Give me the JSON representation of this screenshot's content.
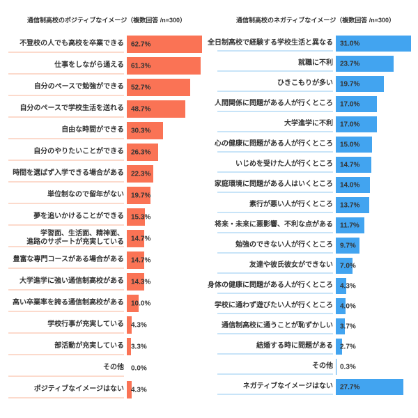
{
  "chart_data": [
    {
      "type": "bar",
      "orientation": "horizontal",
      "title": "通信制高校のポジティブなイメージ（複数回答 /n=300）",
      "sample_note": "複数回答 /n=300",
      "bar_color": "#FA7355",
      "label_underline_color": "#FCDACC",
      "value_text_color": "#333333",
      "label_text_color": "#333333",
      "value_label_format": "{value}%",
      "xlim": [
        0,
        62.7
      ],
      "grid": false,
      "legend": "none",
      "categories": [
        "不登校の人でも高校を卒業できる",
        "仕事をしながら通える",
        "自分のペースで勉強ができる",
        "自分のペースで学校生活を送れる",
        "自由な時間ができる",
        "自分のやりたいことができる",
        "時間を選ばず入学できる場合がある",
        "単位制なので留年がない",
        "夢を追いかけることができる",
        "学習面、生活面、精神面、\n進路のサポートが充実している",
        "豊富な専門コースがある場合がある",
        "大学進学に強い通信制高校がある",
        "高い卒業率を誇る通信制高校がある",
        "学校行事が充実している",
        "部活動が充実している",
        "その他",
        "ポジティブなイメージはない"
      ],
      "values": [
        62.7,
        61.3,
        52.7,
        48.7,
        30.3,
        26.3,
        22.3,
        19.7,
        15.3,
        14.7,
        14.7,
        14.3,
        10.0,
        4.3,
        3.3,
        0.0,
        4.3
      ]
    },
    {
      "type": "bar",
      "orientation": "horizontal",
      "title": "通信制高校のネガティブなイメージ（複数回答 /n=300）",
      "sample_note": "複数回答 /n=300",
      "bar_color": "#42A4F0",
      "label_underline_color": "#C8E4F8",
      "value_text_color": "#333333",
      "label_text_color": "#333333",
      "value_label_format": "{value}%",
      "xlim": [
        0,
        31.0
      ],
      "grid": false,
      "legend": "none",
      "categories": [
        "全日制高校で経験する学校生活と異なる",
        "就職に不利",
        "ひきこもりが多い",
        "人間関係に問題がある人が行くところ",
        "大学進学に不利",
        "心の健康に問題がある人が行くところ",
        "いじめを受けた人が行くところ",
        "家庭環境に問題がある人はいくところ",
        "素行が悪い人が行くところ",
        "将来・未来に悪影響、不利な点がある",
        "勉強のできない人が行くところ",
        "友達や彼氏彼女ができない",
        "身体の健康に問題がある人が行くところ",
        "学校に通わず遊びたい人が行くところ",
        "通信制高校に通うことが恥ずかしい",
        "結婚する時に問題がある",
        "その他",
        "ネガティブなイメージはない"
      ],
      "values": [
        31.0,
        23.7,
        19.7,
        17.0,
        17.0,
        15.0,
        14.7,
        14.0,
        13.7,
        11.7,
        9.7,
        7.0,
        4.3,
        4.0,
        3.7,
        2.7,
        0.3,
        27.7
      ]
    }
  ]
}
